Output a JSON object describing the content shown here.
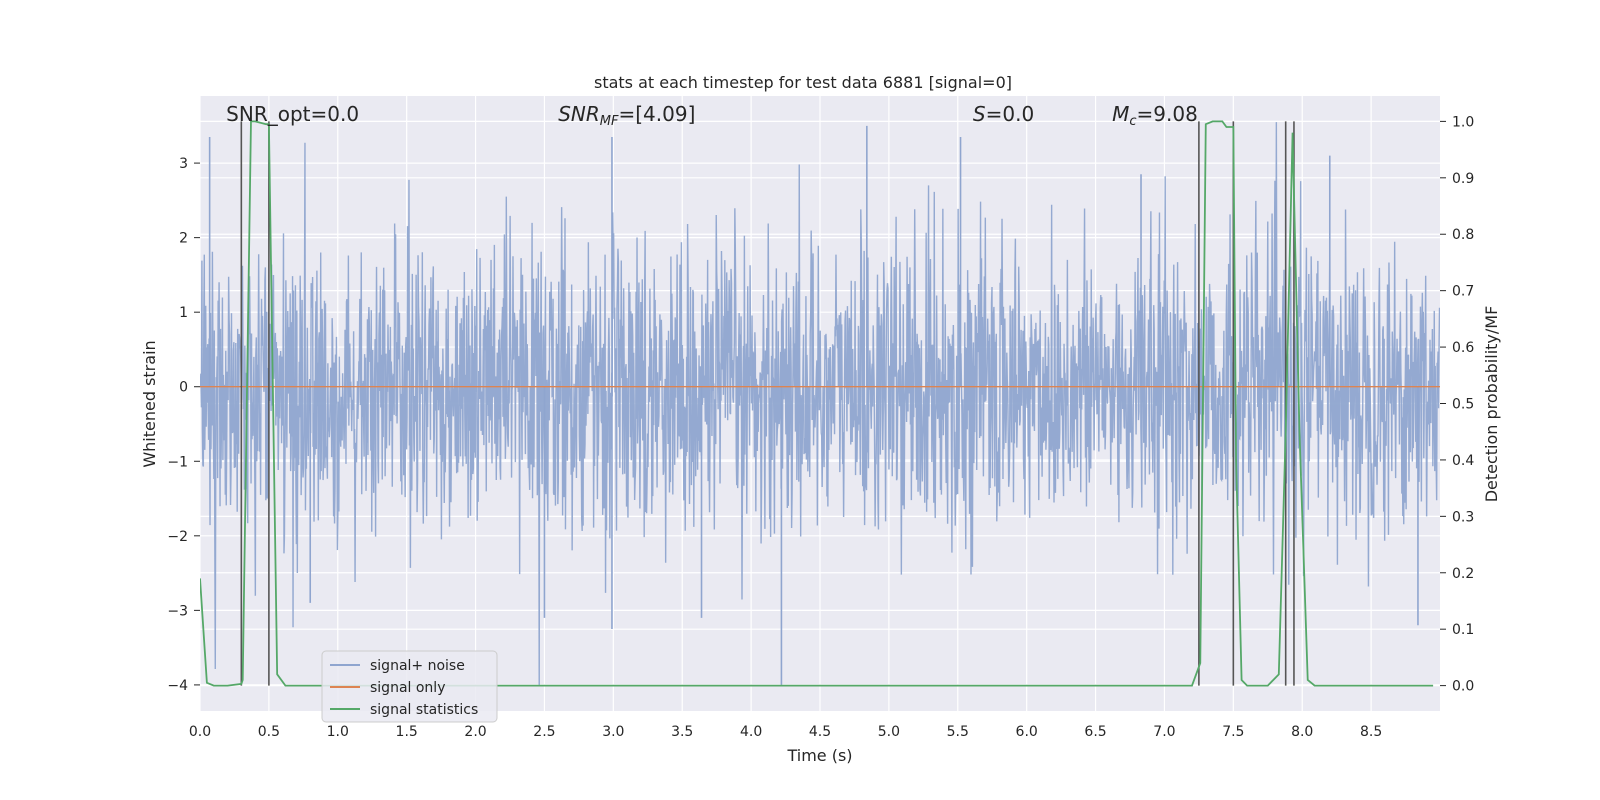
{
  "chart_data": {
    "type": "line",
    "title": "stats at each timestep for test data 6881 [signal=0]",
    "xlabel": "Time (s)",
    "ylabel": "Whitened strain",
    "y2label": "Detection probability/MF",
    "xlim": [
      0.0,
      9.0
    ],
    "ylim": [
      -4.35,
      3.9
    ],
    "y2lim": [
      -0.045,
      1.045
    ],
    "xticks": [
      "0.0",
      "0.5",
      "1.0",
      "1.5",
      "2.0",
      "2.5",
      "3.0",
      "3.5",
      "4.0",
      "4.5",
      "5.0",
      "5.5",
      "6.0",
      "6.5",
      "7.0",
      "7.5",
      "8.0",
      "8.5"
    ],
    "yticks": [
      "3",
      "2",
      "1",
      "0",
      "−1",
      "−2",
      "−3",
      "−4"
    ],
    "y2ticks": [
      "1.0",
      "0.9",
      "0.8",
      "0.7",
      "0.6",
      "0.5",
      "0.4",
      "0.3",
      "0.2",
      "0.1",
      "0.0"
    ],
    "grid": true,
    "legend_position": "lower-left",
    "annotations": [
      {
        "text": "SNR_opt=0.0",
        "x": 0.19
      },
      {
        "text": "SNR",
        "sub": "MF",
        "after": "=[4.09]",
        "x": 2.6,
        "italic": true
      },
      {
        "text": "S",
        "after": "=0.0",
        "x": 5.61,
        "italic": true
      },
      {
        "text": "M",
        "sub": "c",
        "after": "=9.08",
        "x": 6.62,
        "italic": true
      }
    ],
    "series": [
      {
        "name": "signal+ noise",
        "color": "#8fa5cf",
        "kind": "noise",
        "range": [
          -4.0,
          3.55
        ],
        "typical_amplitude": 1.3
      },
      {
        "name": "signal only",
        "color": "#dd8452",
        "kind": "constant",
        "value": 0.0
      },
      {
        "name": "signal statistics",
        "color": "#55a868",
        "axis": "right",
        "x": [
          0.0,
          0.05,
          0.1,
          0.2,
          0.3,
          0.31,
          0.37,
          0.4,
          0.48,
          0.5,
          0.56,
          0.62,
          1.0,
          7.2,
          7.26,
          7.3,
          7.35,
          7.42,
          7.45,
          7.5,
          7.52,
          7.56,
          7.6,
          7.75,
          7.83,
          7.88,
          7.93,
          7.98,
          8.04,
          8.09,
          8.5,
          8.95
        ],
        "y": [
          0.19,
          0.005,
          0.0,
          0.0,
          0.003,
          0.01,
          1.0,
          1.0,
          0.995,
          0.995,
          0.02,
          0.0,
          0.0,
          0.0,
          0.04,
          0.995,
          1.0,
          1.0,
          0.99,
          0.99,
          0.4,
          0.01,
          0.0,
          0.0,
          0.02,
          0.45,
          0.98,
          0.45,
          0.01,
          0.0,
          0.0,
          0.0
        ]
      }
    ],
    "vlines": [
      0.3,
      0.5,
      7.25,
      7.5,
      7.88,
      7.94
    ],
    "noise_peaks": [
      {
        "x": 0.07,
        "y": 3.35
      },
      {
        "x": 2.99,
        "y": 3.35
      },
      {
        "x": 4.84,
        "y": 3.5
      },
      {
        "x": 5.52,
        "y": 3.35
      },
      {
        "x": 4.22,
        "y": -4.0
      },
      {
        "x": 2.5,
        "y": -3.1
      },
      {
        "x": 2.99,
        "y": -3.25
      },
      {
        "x": 3.64,
        "y": -3.1
      },
      {
        "x": 8.2,
        "y": 3.1
      },
      {
        "x": 8.84,
        "y": -3.2
      },
      {
        "x": 0.8,
        "y": -2.9
      },
      {
        "x": 6.83,
        "y": 2.85
      }
    ]
  }
}
